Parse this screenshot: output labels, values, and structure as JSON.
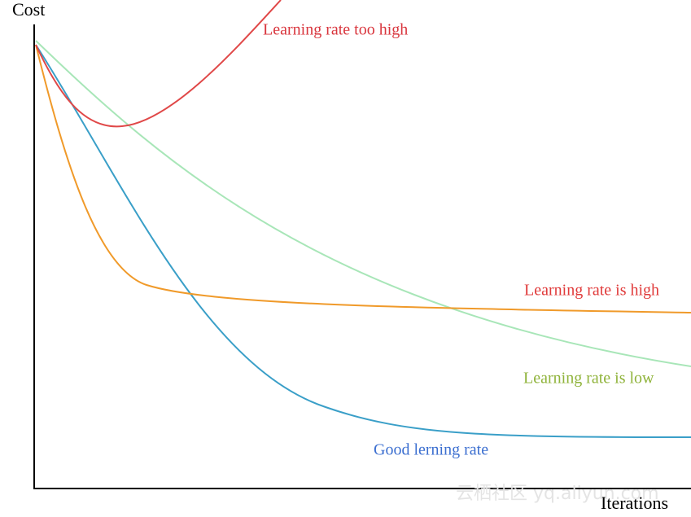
{
  "axes": {
    "y_label": "Cost",
    "x_label": "Iterations"
  },
  "curves": [
    {
      "label": "Learning rate too high"
    },
    {
      "label": "Learning rate is high"
    },
    {
      "label": "Learning rate is low"
    },
    {
      "label": "Good lerning rate"
    }
  ],
  "watermark": "云栖社区 yq.aliyun.com"
}
